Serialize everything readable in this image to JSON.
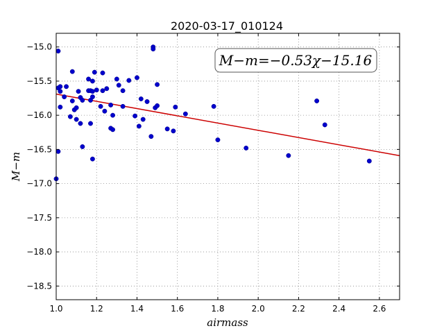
{
  "chart_data": {
    "type": "scatter",
    "title": "2020-03-17_010124",
    "xlabel": "airmass",
    "ylabel": "M−m",
    "xlim": [
      1.0,
      2.7
    ],
    "ylim": [
      -18.7,
      -14.8
    ],
    "y_inverted": true,
    "grid": true,
    "xticks": [
      1.0,
      1.2,
      1.4,
      1.6,
      1.8,
      2.0,
      2.2,
      2.4,
      2.6
    ],
    "xtick_labels": [
      "1.0",
      "1.2",
      "1.4",
      "1.6",
      "1.8",
      "2.0",
      "2.2",
      "2.4",
      "2.6"
    ],
    "yticks": [
      -15.0,
      -15.5,
      -16.0,
      -16.5,
      -17.0,
      -17.5,
      -18.0,
      -18.5
    ],
    "ytick_labels": [
      "−15.0",
      "−15.5",
      "−16.0",
      "−16.5",
      "−17.0",
      "−17.5",
      "−18.0",
      "−18.5"
    ],
    "annotation": "M−m=−0.53χ−15.16",
    "fit": {
      "slope": -0.53,
      "intercept": -15.16
    },
    "colors": {
      "points": "#0000cc",
      "fit_line": "#cc0000",
      "grid": "#888888"
    },
    "points": [
      [
        1.0,
        -16.93
      ],
      [
        1.01,
        -15.06
      ],
      [
        1.01,
        -16.53
      ],
      [
        1.01,
        -15.6
      ],
      [
        1.02,
        -15.58
      ],
      [
        1.02,
        -15.65
      ],
      [
        1.02,
        -15.88
      ],
      [
        1.04,
        -15.73
      ],
      [
        1.05,
        -15.58
      ],
      [
        1.07,
        -16.02
      ],
      [
        1.08,
        -15.36
      ],
      [
        1.08,
        -15.79
      ],
      [
        1.09,
        -15.92
      ],
      [
        1.1,
        -15.89
      ],
      [
        1.1,
        -16.06
      ],
      [
        1.11,
        -15.65
      ],
      [
        1.12,
        -16.12
      ],
      [
        1.12,
        -15.74
      ],
      [
        1.13,
        -15.78
      ],
      [
        1.13,
        -16.46
      ],
      [
        1.16,
        -15.47
      ],
      [
        1.16,
        -15.64
      ],
      [
        1.17,
        -15.78
      ],
      [
        1.17,
        -15.64
      ],
      [
        1.17,
        -16.12
      ],
      [
        1.18,
        -15.5
      ],
      [
        1.18,
        -16.64
      ],
      [
        1.18,
        -15.65
      ],
      [
        1.18,
        -15.73
      ],
      [
        1.19,
        -15.37
      ],
      [
        1.2,
        -15.63
      ],
      [
        1.22,
        -15.87
      ],
      [
        1.23,
        -15.38
      ],
      [
        1.23,
        -15.64
      ],
      [
        1.24,
        -15.94
      ],
      [
        1.25,
        -15.61
      ],
      [
        1.27,
        -15.85
      ],
      [
        1.27,
        -16.19
      ],
      [
        1.28,
        -16.21
      ],
      [
        1.28,
        -16.0
      ],
      [
        1.3,
        -15.47
      ],
      [
        1.31,
        -15.56
      ],
      [
        1.33,
        -15.87
      ],
      [
        1.33,
        -15.64
      ],
      [
        1.36,
        -15.49
      ],
      [
        1.39,
        -16.01
      ],
      [
        1.4,
        -15.45
      ],
      [
        1.41,
        -16.16
      ],
      [
        1.42,
        -15.76
      ],
      [
        1.43,
        -16.06
      ],
      [
        1.45,
        -15.8
      ],
      [
        1.47,
        -16.31
      ],
      [
        1.48,
        -15.0
      ],
      [
        1.48,
        -15.03
      ],
      [
        1.49,
        -15.89
      ],
      [
        1.5,
        -15.86
      ],
      [
        1.5,
        -15.55
      ],
      [
        1.55,
        -16.2
      ],
      [
        1.58,
        -16.23
      ],
      [
        1.59,
        -15.88
      ],
      [
        1.64,
        -15.98
      ],
      [
        1.78,
        -15.87
      ],
      [
        1.8,
        -16.36
      ],
      [
        1.94,
        -16.48
      ],
      [
        2.15,
        -16.59
      ],
      [
        2.29,
        -15.79
      ],
      [
        2.33,
        -16.14
      ],
      [
        2.55,
        -16.67
      ]
    ]
  }
}
